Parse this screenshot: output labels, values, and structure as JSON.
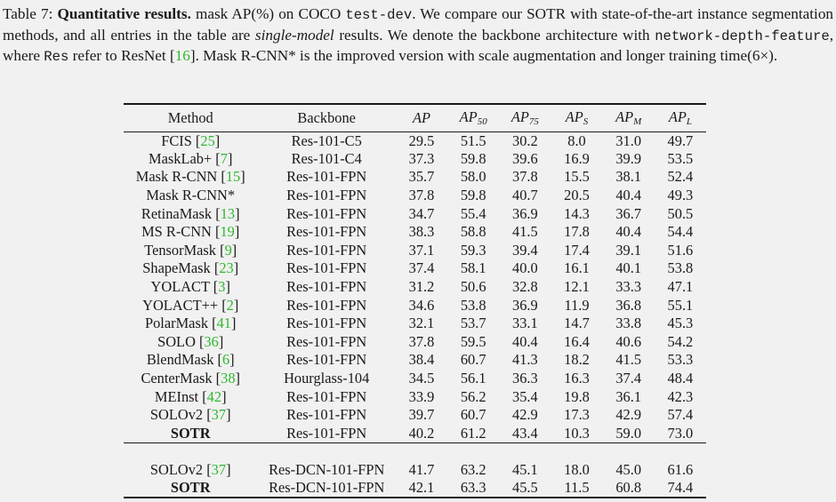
{
  "caption": {
    "label": "Table 7:",
    "heading": "Quantitative results.",
    "t1": "mask AP(%) on COCO",
    "t1_code": "test-dev",
    "t2": ". We compare our SOTR with state-of-the-art instance segmentation methods, and all entries in the table are",
    "t2_ital": "single-model",
    "t3": "results. We denote the backbone architecture with",
    "t3_code": "network-depth-feature",
    "t4": ", where",
    "t4_code": "Res",
    "t5": "refer to ResNet [",
    "t5_cite": "16",
    "t6": "]. Mask R-CNN* is the improved version with scale augmentation and longer training time(6×)."
  },
  "table": {
    "headers": {
      "method": "Method",
      "backbone": "Backbone",
      "ap": "AP",
      "ap50_sub": "50",
      "ap75_sub": "75",
      "aps_sub": "S",
      "apm_sub": "M",
      "apl_sub": "L"
    },
    "rows": [
      {
        "name": "FCIS",
        "cite": "25",
        "backbone": "Res-101-C5",
        "v": [
          "29.5",
          "51.5",
          "30.2",
          "8.0",
          "31.0",
          "49.7"
        ]
      },
      {
        "name": "MaskLab+",
        "cite": "7",
        "backbone": "Res-101-C4",
        "v": [
          "37.3",
          "59.8",
          "39.6",
          "16.9",
          "39.9",
          "53.5"
        ]
      },
      {
        "name": "Mask R-CNN",
        "cite": "15",
        "backbone": "Res-101-FPN",
        "v": [
          "35.7",
          "58.0",
          "37.8",
          "15.5",
          "38.1",
          "52.4"
        ]
      },
      {
        "name": "Mask R-CNN*",
        "cite": "",
        "backbone": "Res-101-FPN",
        "v": [
          "37.8",
          "59.8",
          "40.7",
          "20.5",
          "40.4",
          "49.3"
        ]
      },
      {
        "name": "RetinaMask",
        "cite": "13",
        "backbone": "Res-101-FPN",
        "v": [
          "34.7",
          "55.4",
          "36.9",
          "14.3",
          "36.7",
          "50.5"
        ]
      },
      {
        "name": "MS R-CNN",
        "cite": "19",
        "backbone": "Res-101-FPN",
        "v": [
          "38.3",
          "58.8",
          "41.5",
          "17.8",
          "40.4",
          "54.4"
        ]
      },
      {
        "name": "TensorMask",
        "cite": "9",
        "backbone": "Res-101-FPN",
        "v": [
          "37.1",
          "59.3",
          "39.4",
          "17.4",
          "39.1",
          "51.6"
        ]
      },
      {
        "name": "ShapeMask",
        "cite": "23",
        "backbone": "Res-101-FPN",
        "v": [
          "37.4",
          "58.1",
          "40.0",
          "16.1",
          "40.1",
          "53.8"
        ]
      },
      {
        "name": "YOLACT",
        "cite": "3",
        "backbone": "Res-101-FPN",
        "v": [
          "31.2",
          "50.6",
          "32.8",
          "12.1",
          "33.3",
          "47.1"
        ]
      },
      {
        "name": "YOLACT++",
        "cite": "2",
        "backbone": "Res-101-FPN",
        "v": [
          "34.6",
          "53.8",
          "36.9",
          "11.9",
          "36.8",
          "55.1"
        ]
      },
      {
        "name": "PolarMask",
        "cite": "41",
        "backbone": "Res-101-FPN",
        "v": [
          "32.1",
          "53.7",
          "33.1",
          "14.7",
          "33.8",
          "45.3"
        ]
      },
      {
        "name": "SOLO",
        "cite": "36",
        "backbone": "Res-101-FPN",
        "v": [
          "37.8",
          "59.5",
          "40.4",
          "16.4",
          "40.6",
          "54.2"
        ]
      },
      {
        "name": "BlendMask",
        "cite": "6",
        "backbone": "Res-101-FPN",
        "v": [
          "38.4",
          "60.7",
          "41.3",
          "18.2",
          "41.5",
          "53.3"
        ]
      },
      {
        "name": "CenterMask",
        "cite": "38",
        "backbone": "Hourglass-104",
        "v": [
          "34.5",
          "56.1",
          "36.3",
          "16.3",
          "37.4",
          "48.4"
        ]
      },
      {
        "name": "MEInst",
        "cite": "42",
        "backbone": "Res-101-FPN",
        "v": [
          "33.9",
          "56.2",
          "35.4",
          "19.8",
          "36.1",
          "42.3"
        ]
      },
      {
        "name": "SOLOv2",
        "cite": "37",
        "backbone": "Res-101-FPN",
        "v": [
          "39.7",
          "60.7",
          "42.9",
          "17.3",
          "42.9",
          "57.4"
        ]
      },
      {
        "name": "SOTR",
        "cite": "",
        "backbone": "Res-101-FPN",
        "v": [
          "40.2",
          "61.2",
          "43.4",
          "10.3",
          "59.0",
          "73.0"
        ]
      }
    ],
    "rows2": [
      {
        "name": "SOLOv2",
        "cite": "37",
        "backbone": "Res-DCN-101-FPN",
        "v": [
          "41.7",
          "63.2",
          "45.1",
          "18.0",
          "45.0",
          "61.6"
        ]
      },
      {
        "name": "SOTR",
        "cite": "",
        "backbone": "Res-DCN-101-FPN",
        "v": [
          "42.1",
          "63.3",
          "45.5",
          "11.5",
          "60.8",
          "74.4"
        ]
      }
    ]
  }
}
